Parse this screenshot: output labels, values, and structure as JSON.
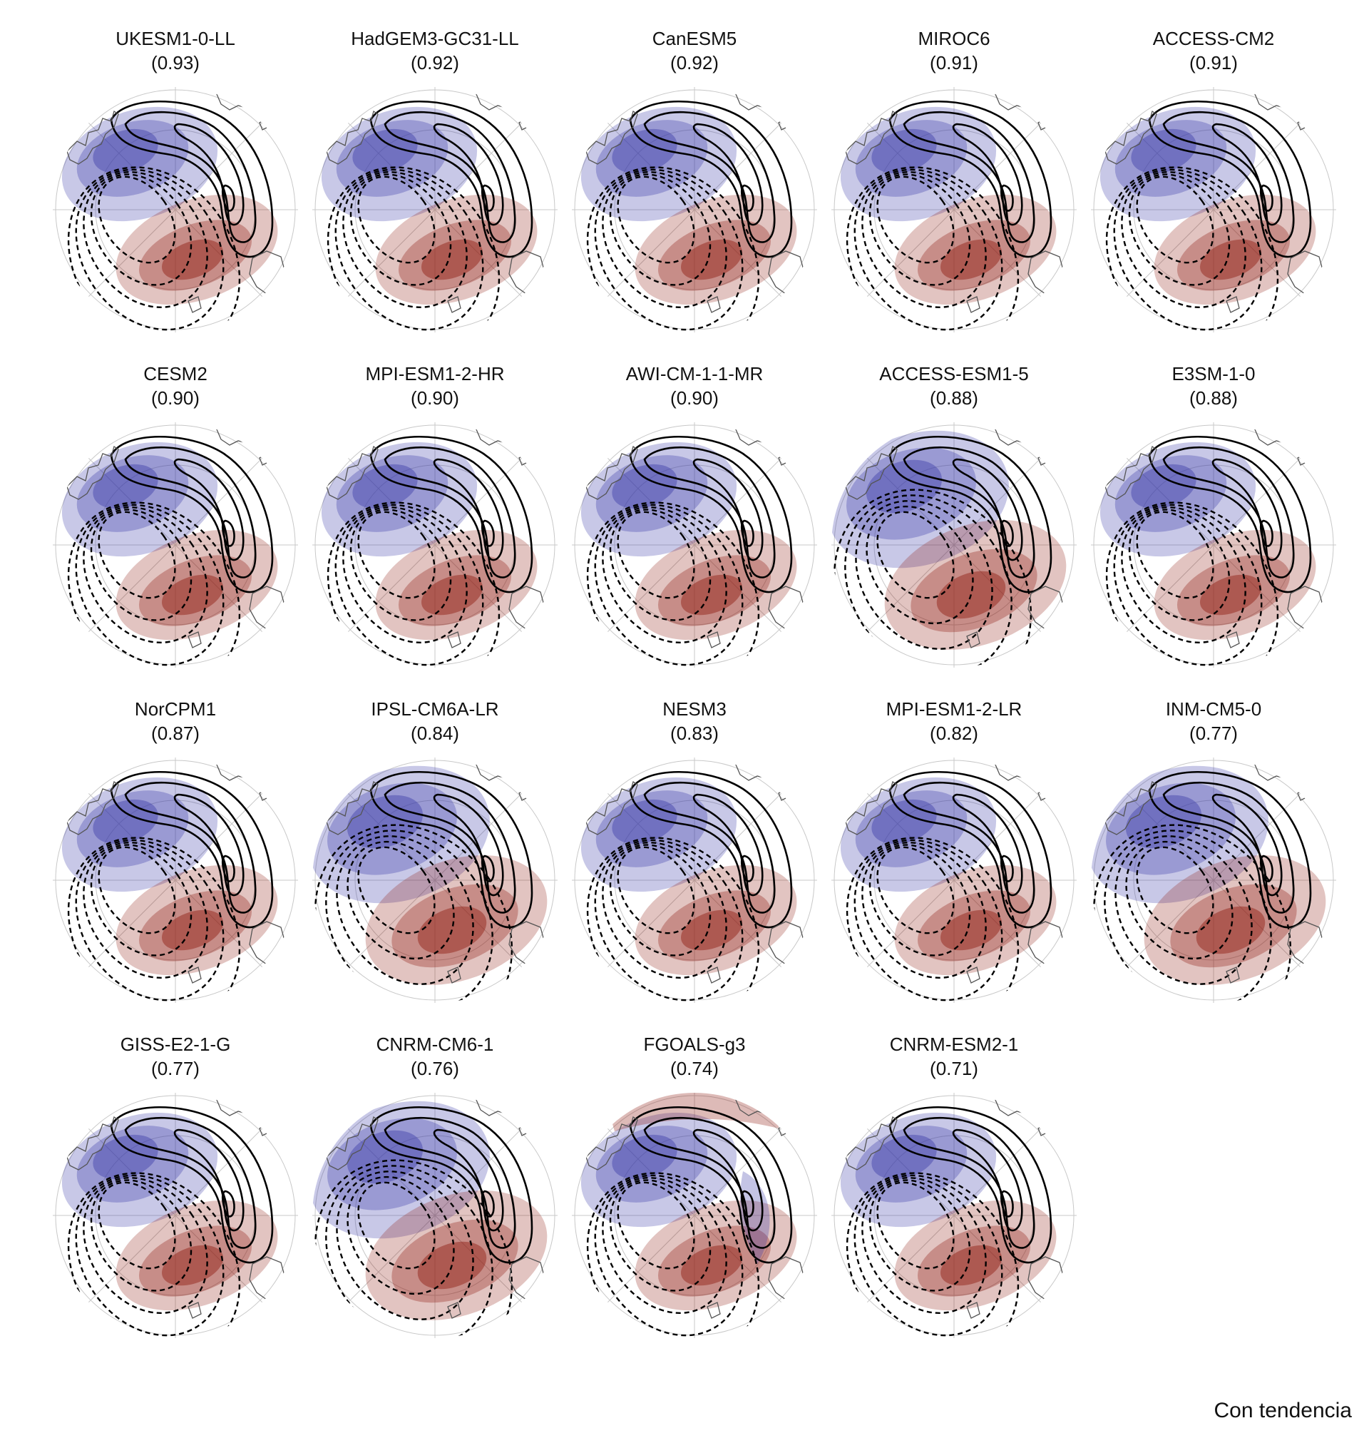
{
  "models": [
    {
      "name": "UKESM1-0-LL",
      "score": "(0.93)",
      "variant": "standard"
    },
    {
      "name": "HadGEM3-GC31-LL",
      "score": "(0.92)",
      "variant": "standard"
    },
    {
      "name": "CanESM5",
      "score": "(0.92)",
      "variant": "standard"
    },
    {
      "name": "MIROC6",
      "score": "(0.91)",
      "variant": "standard"
    },
    {
      "name": "ACCESS-CM2",
      "score": "(0.91)",
      "variant": "standard"
    },
    {
      "name": "CESM2",
      "score": "(0.90)",
      "variant": "standard"
    },
    {
      "name": "MPI-ESM1-2-HR",
      "score": "(0.90)",
      "variant": "standard"
    },
    {
      "name": "AWI-CM-1-1-MR",
      "score": "(0.90)",
      "variant": "standard"
    },
    {
      "name": "ACCESS-ESM1-5",
      "score": "(0.88)",
      "variant": "wide"
    },
    {
      "name": "E3SM-1-0",
      "score": "(0.88)",
      "variant": "standard"
    },
    {
      "name": "NorCPM1",
      "score": "(0.87)",
      "variant": "standard"
    },
    {
      "name": "IPSL-CM6A-LR",
      "score": "(0.84)",
      "variant": "wide"
    },
    {
      "name": "NESM3",
      "score": "(0.83)",
      "variant": "standard"
    },
    {
      "name": "MPI-ESM1-2-LR",
      "score": "(0.82)",
      "variant": "standard"
    },
    {
      "name": "INM-CM5-0",
      "score": "(0.77)",
      "variant": "wide"
    },
    {
      "name": "GISS-E2-1-G",
      "score": "(0.77)",
      "variant": "standard"
    },
    {
      "name": "CNRM-CM6-1",
      "score": "(0.76)",
      "variant": "wide"
    },
    {
      "name": "FGOALS-g3",
      "score": "(0.74)",
      "variant": "irregular"
    },
    {
      "name": "CNRM-ESM2-1",
      "score": "(0.71)",
      "variant": "standard"
    }
  ],
  "footer_label": "Con tendencia",
  "colors": {
    "negative_anomaly": "#3a3aa8",
    "positive_anomaly": "#8e1a10",
    "contour": "#000000",
    "graticule": "#c8c8c8",
    "coastline": "#555555"
  }
}
